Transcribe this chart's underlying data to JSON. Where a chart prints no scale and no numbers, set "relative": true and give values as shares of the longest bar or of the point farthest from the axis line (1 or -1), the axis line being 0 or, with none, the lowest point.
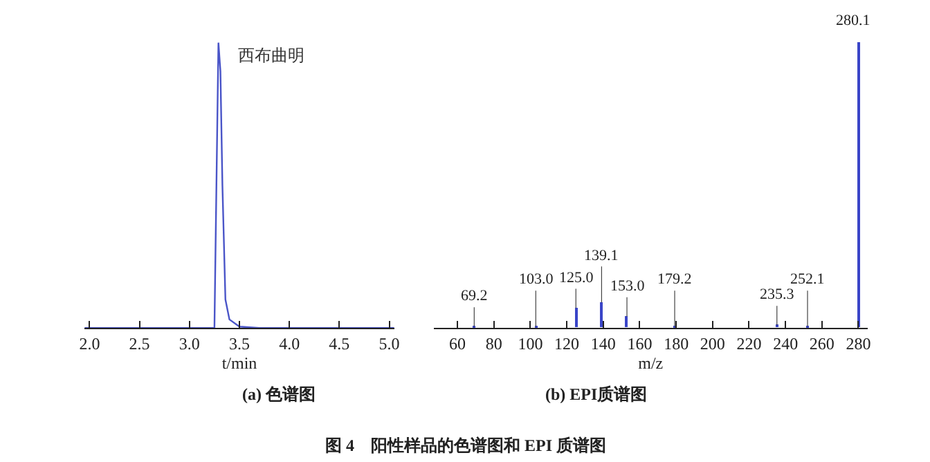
{
  "chart_data": [
    {
      "type": "line",
      "title": "(a) 色谱图",
      "xlabel": "t/min",
      "relative": true,
      "marker": "none",
      "line_style": "solid",
      "x": [
        1.95,
        3.25,
        3.27,
        3.29,
        3.31,
        3.33,
        3.36,
        3.4,
        3.5,
        3.7,
        5.05
      ],
      "series": [
        {
          "color": "#4a55c8",
          "values": [
            0,
            0,
            0.5,
            1.0,
            0.9,
            0.5,
            0.1,
            0.03,
            0.005,
            0,
            0
          ]
        }
      ],
      "xlim": [
        1.95,
        5.05
      ],
      "xticks": [
        {
          "value": 2,
          "label": "2.0"
        },
        2.5,
        {
          "value": 3,
          "label": "3.0"
        },
        3.5,
        {
          "value": 4,
          "label": "4.0"
        },
        4.5,
        {
          "value": 5,
          "label": "5.0"
        }
      ],
      "annotations": [
        {
          "text": "西布曲明",
          "x": 3.29,
          "y": 1.0
        },
        "图 4　阳性样品的色谱图和 EPI 质谱图"
      ]
    },
    {
      "type": "bar",
      "title": "(b) EPI质谱图",
      "xlabel": "m/z",
      "relative": true,
      "x": [
        69.2,
        103.0,
        125.0,
        139.1,
        153.0,
        179.2,
        235.3,
        252.1,
        280.1
      ],
      "series": [
        {
          "color": "#3a45c8",
          "values": [
            0.005,
            0.005,
            0.07,
            0.09,
            0.04,
            0.005,
            0.01,
            0.005,
            1.0
          ]
        }
      ],
      "xlim": [
        47,
        285
      ],
      "xticks": [
        60,
        80,
        100,
        120,
        140,
        160,
        180,
        200,
        220,
        240,
        260,
        280
      ],
      "annotations": [
        {
          "text": "69.2",
          "x": 69.2,
          "y": 0.005
        },
        {
          "text": "103.0",
          "x": 103.0,
          "y": 0.005
        },
        {
          "text": "125.0",
          "x": 125.0,
          "y": 0.07
        },
        {
          "text": "139.1",
          "x": 139.1,
          "y": 0.09
        },
        {
          "text": "153.0",
          "x": 153.0,
          "y": 0.04
        },
        {
          "text": "179.2",
          "x": 179.2,
          "y": 0.005
        },
        {
          "text": "235.3",
          "x": 235.3,
          "y": 0.01
        },
        {
          "text": "252.1",
          "x": 252.1,
          "y": 0.005
        },
        {
          "text": "280.1",
          "x": 280.1,
          "y": 1.0
        }
      ]
    }
  ]
}
